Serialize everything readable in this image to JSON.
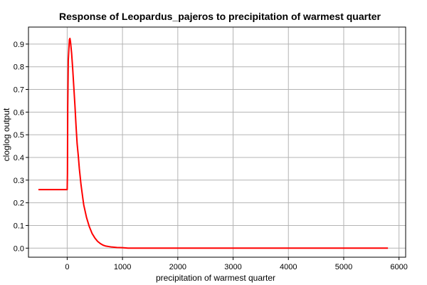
{
  "chart_data": {
    "type": "line",
    "title": "Response of Leopardus_pajeros to precipitation of warmest quarter",
    "xlabel": "precipitation of warmest quarter",
    "ylabel": "cloglog output",
    "xlim": [
      -700,
      6120
    ],
    "ylim": [
      -0.04,
      0.975
    ],
    "x_ticks": [
      0,
      1000,
      2000,
      3000,
      4000,
      5000,
      6000
    ],
    "y_ticks": [
      0.0,
      0.1,
      0.2,
      0.3,
      0.4,
      0.5,
      0.6,
      0.7,
      0.8,
      0.9
    ],
    "grid": true,
    "line_color": "#ff0000",
    "series": [
      {
        "x": [
          -520,
          -400,
          -200,
          -50,
          0,
          5,
          10,
          20,
          40,
          50,
          60,
          80,
          100,
          120,
          140,
          160,
          180,
          200,
          220,
          250,
          280,
          300,
          350,
          400,
          450,
          500,
          550,
          600,
          650,
          700,
          800,
          900,
          1000,
          1100,
          2000,
          3000,
          4000,
          5000,
          5800
        ],
        "y": [
          0.258,
          0.258,
          0.258,
          0.258,
          0.258,
          0.33,
          0.62,
          0.83,
          0.92,
          0.925,
          0.91,
          0.86,
          0.79,
          0.71,
          0.63,
          0.54,
          0.46,
          0.41,
          0.35,
          0.28,
          0.225,
          0.19,
          0.135,
          0.095,
          0.065,
          0.045,
          0.03,
          0.02,
          0.013,
          0.009,
          0.005,
          0.003,
          0.002,
          0.0,
          0.0,
          0.0,
          0.0,
          0.0,
          0.0
        ]
      }
    ]
  }
}
